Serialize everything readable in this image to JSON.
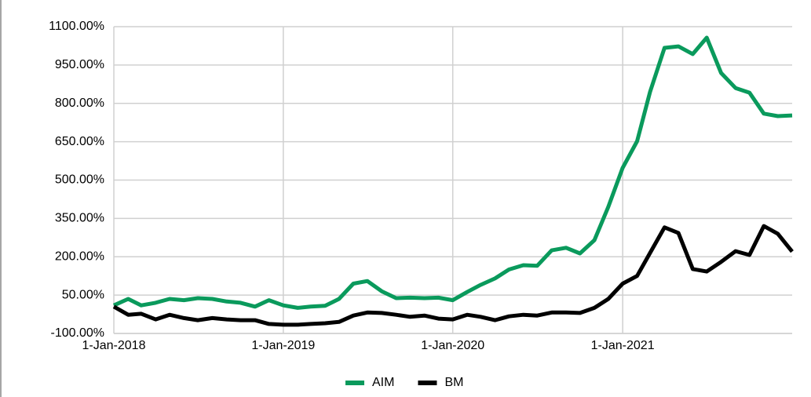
{
  "chart_data": {
    "type": "line",
    "x": [
      "2018-01-01",
      "2018-02-01",
      "2018-03-01",
      "2018-04-01",
      "2018-05-01",
      "2018-06-01",
      "2018-07-01",
      "2018-08-01",
      "2018-09-01",
      "2018-10-01",
      "2018-11-01",
      "2018-12-01",
      "2019-01-01",
      "2019-02-01",
      "2019-03-01",
      "2019-04-01",
      "2019-05-01",
      "2019-06-01",
      "2019-07-01",
      "2019-08-01",
      "2019-09-01",
      "2019-10-01",
      "2019-11-01",
      "2019-12-01",
      "2020-01-01",
      "2020-02-01",
      "2020-03-01",
      "2020-04-01",
      "2020-05-01",
      "2020-06-01",
      "2020-07-01",
      "2020-08-01",
      "2020-09-01",
      "2020-10-01",
      "2020-11-01",
      "2020-12-01",
      "2021-01-01",
      "2021-02-01",
      "2021-03-01",
      "2021-04-01",
      "2021-05-01",
      "2021-06-01",
      "2021-07-01",
      "2021-08-01",
      "2021-09-01",
      "2021-10-01",
      "2021-11-01",
      "2021-12-01",
      "2022-01-01"
    ],
    "series": [
      {
        "name": "AIM",
        "color": "#0a9a5c",
        "values": [
          10,
          35,
          10,
          20,
          35,
          30,
          38,
          35,
          25,
          20,
          5,
          30,
          10,
          0,
          5,
          8,
          35,
          95,
          105,
          65,
          38,
          40,
          38,
          40,
          30,
          62,
          90,
          115,
          150,
          167,
          165,
          225,
          235,
          213,
          265,
          395,
          548,
          652,
          845,
          1017,
          1023,
          993,
          1057,
          919,
          860,
          842,
          760,
          750,
          753
        ]
      },
      {
        "name": "BM",
        "color": "#000000",
        "values": [
          5,
          -27,
          -23,
          -45,
          -27,
          -40,
          -48,
          -40,
          -45,
          -48,
          -48,
          -63,
          -66,
          -66,
          -63,
          -60,
          -55,
          -30,
          -18,
          -20,
          -27,
          -35,
          -30,
          -42,
          -45,
          -27,
          -35,
          -48,
          -33,
          -27,
          -30,
          -18,
          -18,
          -20,
          0,
          35,
          95,
          125,
          215,
          315,
          293,
          152,
          142,
          180,
          222,
          207,
          320,
          290,
          220
        ]
      }
    ],
    "xlim": [
      "2018-01-01",
      "2022-01-01"
    ],
    "xticks": [
      {
        "value": "2018-01-01",
        "label": "1-Jan-2018"
      },
      {
        "value": "2019-01-01",
        "label": "1-Jan-2019"
      },
      {
        "value": "2020-01-01",
        "label": "1-Jan-2020"
      },
      {
        "value": "2021-01-01",
        "label": "1-Jan-2021"
      }
    ],
    "ylim": [
      -100,
      1100
    ],
    "yticks": [
      {
        "value": -100,
        "label": "-100.00%"
      },
      {
        "value": 50,
        "label": "50.00%"
      },
      {
        "value": 200,
        "label": "200.00%"
      },
      {
        "value": 350,
        "label": "350.00%"
      },
      {
        "value": 500,
        "label": "500.00%"
      },
      {
        "value": 650,
        "label": "650.00%"
      },
      {
        "value": 800,
        "label": "800.00%"
      },
      {
        "value": 950,
        "label": "950.00%"
      },
      {
        "value": 1100,
        "label": "1100.00%"
      }
    ],
    "grid": true,
    "legend": "bottom"
  }
}
